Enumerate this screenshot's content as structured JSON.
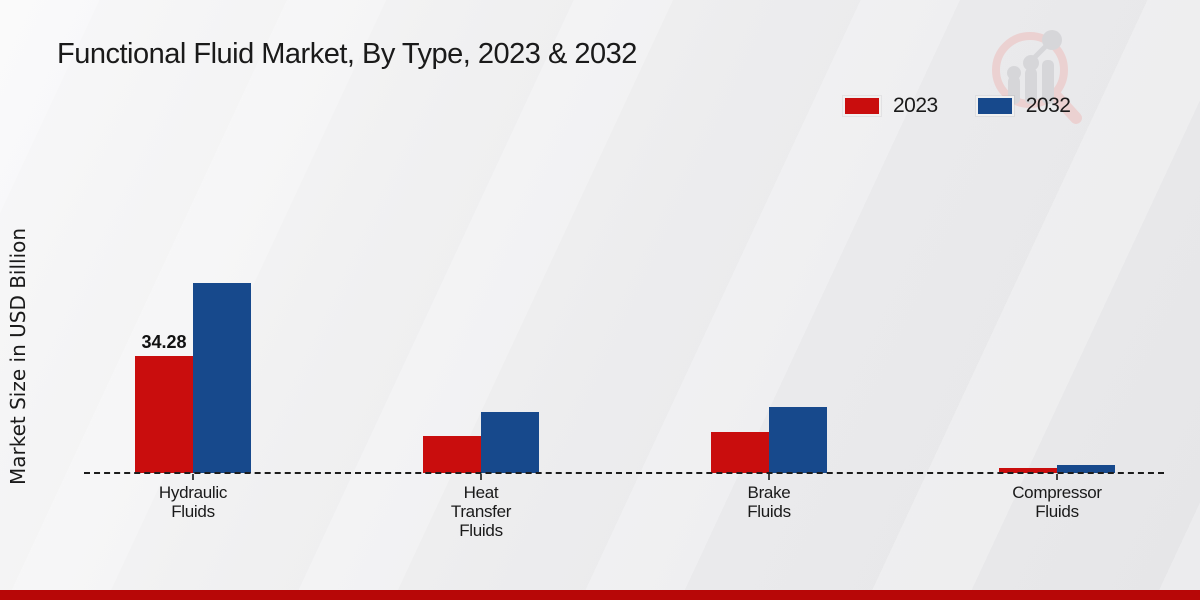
{
  "title": "Functional Fluid Market, By Type, 2023 & 2032",
  "y_axis_label": "Market Size in USD Billion",
  "legend": {
    "items": [
      {
        "label": "2023",
        "color": "#c90d0d"
      },
      {
        "label": "2032",
        "color": "#17498c"
      }
    ]
  },
  "watermark_name": "market-research-future-logo",
  "footer_accent_color": "#b70707",
  "chart_data": {
    "type": "bar",
    "title": "Functional Fluid Market, By Type, 2023 & 2032",
    "categories": [
      "Hydraulic Fluids",
      "Heat Transfer Fluids",
      "Brake Fluids",
      "Compressor Fluids"
    ],
    "category_label_lines": [
      "Hydraulic\nFluids",
      "Heat\nTransfer\nFluids",
      "Brake\nFluids",
      "Compressor\nFluids"
    ],
    "series": [
      {
        "name": "2023",
        "color": "#c90d0d",
        "values": [
          34.28,
          10.8,
          12.0,
          1.5
        ]
      },
      {
        "name": "2032",
        "color": "#17498c",
        "values": [
          55.7,
          17.9,
          19.3,
          2.2
        ]
      }
    ],
    "data_labels": [
      {
        "series_index": 0,
        "category_index": 0,
        "text": "34.28"
      }
    ],
    "xlabel": "",
    "ylabel": "Market Size in USD Billion",
    "ylim": [
      0,
      60
    ],
    "grid": false,
    "axis_style": "dashed-baseline-only",
    "legend_position": "top-right"
  }
}
